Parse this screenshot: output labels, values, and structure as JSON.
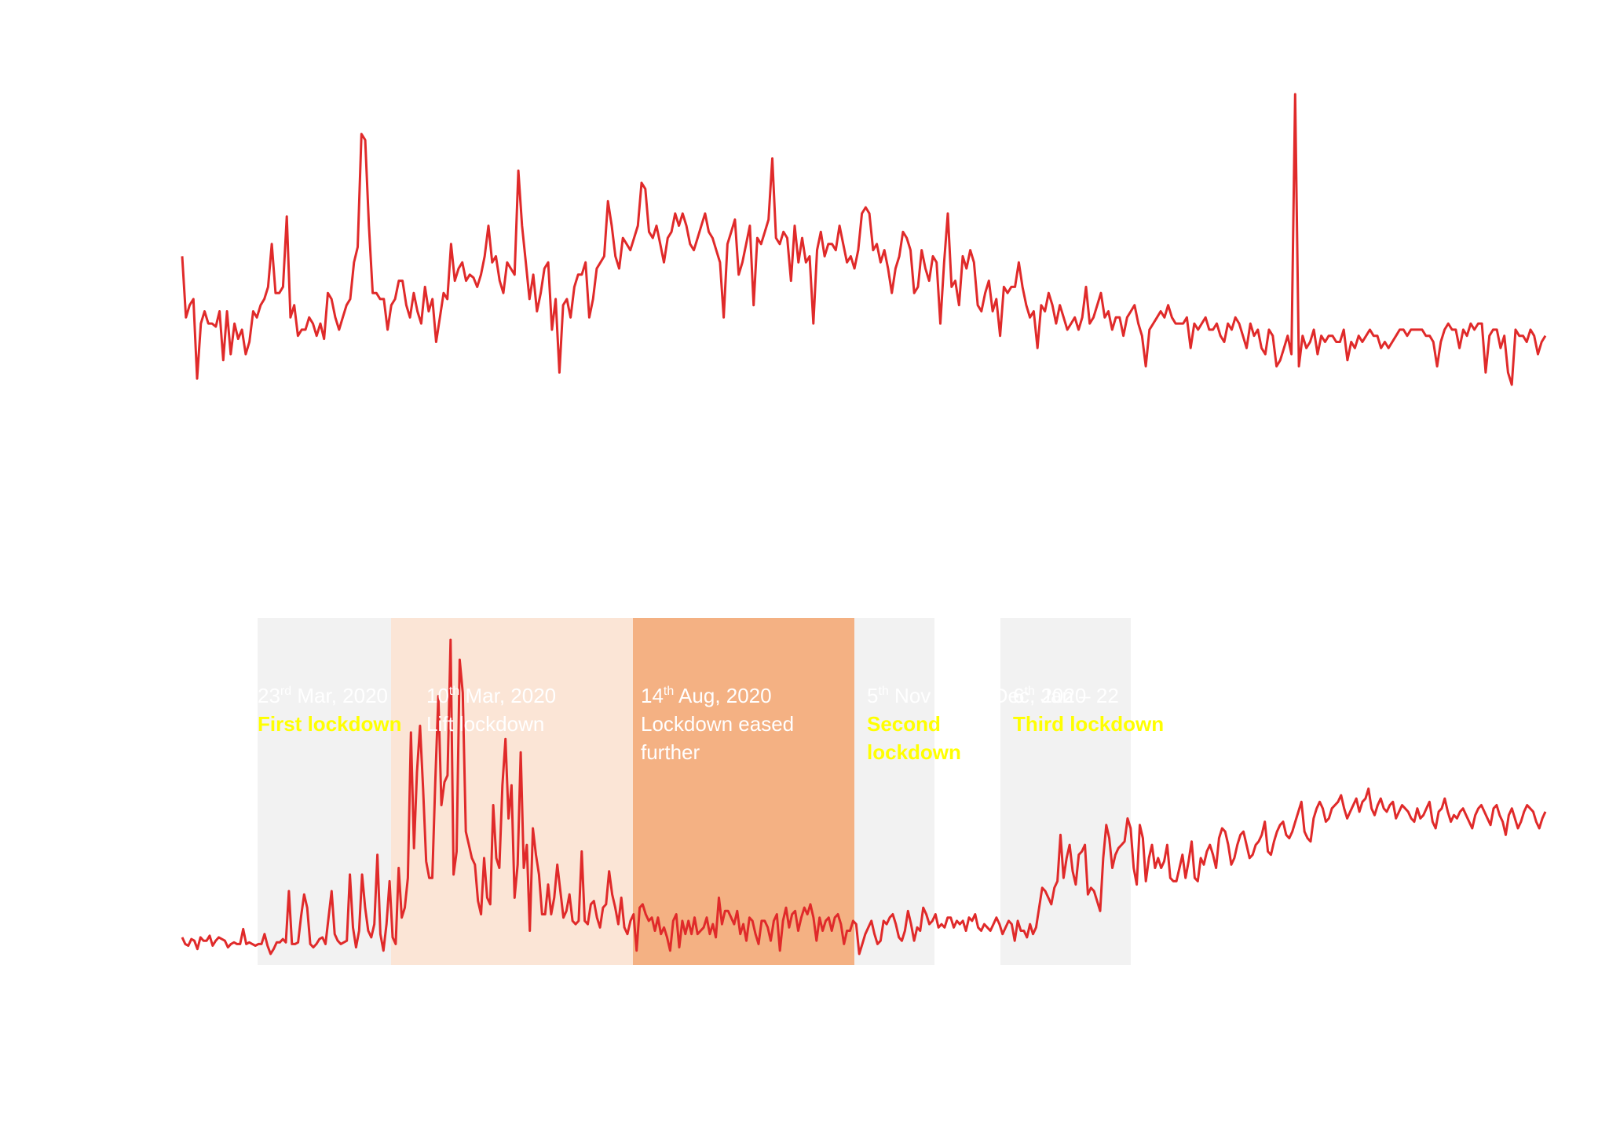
{
  "colors": {
    "line": "#e02a2a",
    "band_grey": "#f2f2f2",
    "band_light": "#fbe5d6",
    "band_orange": "#f4b183",
    "label_white": "#ffffff",
    "label_yellow": "#ffff00"
  },
  "chart_data": [
    {
      "type": "line",
      "title": "",
      "xlabel": "",
      "ylabel": "",
      "grid": false,
      "series": [
        {
          "values": [
            82,
            62,
            66,
            68,
            42,
            60,
            64,
            60,
            60,
            59,
            64,
            48,
            64,
            50,
            60,
            55,
            58,
            50,
            54,
            64,
            62,
            66,
            68,
            72,
            86,
            70,
            70,
            72,
            95,
            62,
            66,
            56,
            58,
            58,
            62,
            60,
            56,
            60,
            55,
            70,
            68,
            62,
            58,
            62,
            66,
            68,
            80,
            85,
            122,
            120,
            92,
            70,
            70,
            68,
            68,
            58,
            66,
            68,
            74,
            74,
            66,
            62,
            70,
            64,
            60,
            72,
            64,
            68,
            54,
            62,
            70,
            68,
            86,
            74,
            78,
            80,
            74,
            76,
            75,
            72,
            76,
            82,
            92,
            80,
            82,
            74,
            70,
            80,
            78,
            76,
            110,
            92,
            80,
            68,
            76,
            64,
            70,
            78,
            80,
            58,
            68,
            44,
            66,
            68,
            62,
            72,
            76,
            76,
            80,
            62,
            68,
            78,
            80,
            82,
            100,
            92,
            82,
            78,
            88,
            86,
            84,
            88,
            92,
            106,
            104,
            90,
            88,
            92,
            86,
            80,
            88,
            90,
            96,
            92,
            96,
            92,
            86,
            84,
            88,
            92,
            96,
            90,
            88,
            84,
            80,
            62,
            86,
            90,
            94,
            76,
            80,
            86,
            92,
            66,
            88,
            86,
            90,
            94,
            114,
            88,
            86,
            90,
            88,
            74,
            92,
            80,
            88,
            80,
            82,
            60,
            84,
            90,
            82,
            86,
            86,
            84,
            92,
            86,
            80,
            82,
            78,
            84,
            96,
            98,
            96,
            84,
            86,
            80,
            84,
            78,
            70,
            78,
            82,
            90,
            88,
            84,
            70,
            72,
            84,
            78,
            74,
            82,
            80,
            60,
            80,
            96,
            72,
            74,
            66,
            82,
            78,
            84,
            80,
            66,
            64,
            70,
            74,
            64,
            68,
            56,
            72,
            70,
            72,
            72,
            80,
            72,
            66,
            62,
            64,
            52,
            66,
            64,
            70,
            66,
            60,
            66,
            62,
            58,
            60,
            62,
            58,
            62,
            72,
            60,
            62,
            66,
            70,
            62,
            64,
            58,
            62,
            62,
            56,
            62,
            64,
            66,
            60,
            56,
            46,
            58,
            60,
            62,
            64,
            62,
            66,
            62,
            60,
            60,
            60,
            62,
            52,
            60,
            58,
            60,
            62,
            58,
            58,
            60,
            56,
            54,
            60,
            58,
            62,
            60,
            56,
            52,
            60,
            56,
            58,
            52,
            50,
            58,
            56,
            46,
            48,
            52,
            56,
            50,
            135,
            46,
            56,
            52,
            54,
            58,
            50,
            56,
            54,
            56,
            56,
            54,
            54,
            58,
            48,
            54,
            52,
            56,
            54,
            56,
            58,
            56,
            56,
            52,
            54,
            52,
            54,
            56,
            58,
            58,
            56,
            58,
            58,
            58,
            58,
            56,
            56,
            54,
            46,
            54,
            58,
            60,
            58,
            58,
            52,
            58,
            56,
            60,
            58,
            60,
            60,
            44,
            56,
            58,
            58,
            52,
            56,
            44,
            40,
            58,
            56,
            56,
            54,
            58,
            56,
            50,
            54,
            56
          ]
        }
      ]
    },
    {
      "type": "line",
      "title": "",
      "xlabel": "",
      "ylabel": "",
      "grid": false,
      "series": [
        {
          "values": [
            48,
            44,
            43,
            47,
            46,
            41,
            48,
            46,
            46,
            49,
            43,
            46,
            48,
            47,
            46,
            42,
            44,
            45,
            44,
            44,
            53,
            44,
            45,
            44,
            43,
            44,
            44,
            50,
            43,
            38,
            41,
            45,
            45,
            47,
            45,
            76,
            44,
            44,
            45,
            61,
            74,
            66,
            44,
            42,
            44,
            47,
            48,
            44,
            60,
            76,
            50,
            46,
            44,
            45,
            46,
            86,
            54,
            42,
            52,
            86,
            66,
            52,
            48,
            56,
            98,
            50,
            40,
            56,
            82,
            48,
            44,
            90,
            60,
            66,
            84,
            172,
            102,
            148,
            176,
            138,
            94,
            84,
            84,
            142,
            194,
            128,
            142,
            146,
            228,
            86,
            100,
            216,
            196,
            112,
            104,
            96,
            92,
            70,
            62,
            96,
            72,
            68,
            128,
            96,
            90,
            140,
            168,
            120,
            140,
            72,
            92,
            160,
            90,
            104,
            52,
            114,
            98,
            86,
            62,
            62,
            80,
            62,
            72,
            92,
            76,
            60,
            64,
            74,
            58,
            56,
            58,
            100,
            58,
            56,
            68,
            70,
            60,
            54,
            66,
            68,
            88,
            74,
            66,
            56,
            72,
            54,
            50,
            58,
            62,
            40,
            66,
            68,
            62,
            58,
            60,
            52,
            60,
            50,
            54,
            48,
            40,
            58,
            62,
            42,
            58,
            50,
            58,
            50,
            60,
            50,
            52,
            54,
            60,
            50,
            56,
            48,
            72,
            56,
            64,
            64,
            60,
            56,
            64,
            50,
            56,
            46,
            60,
            58,
            50,
            44,
            58,
            58,
            54,
            46,
            58,
            62,
            40,
            58,
            66,
            54,
            62,
            64,
            52,
            60,
            66,
            62,
            68,
            60,
            46,
            60,
            52,
            58,
            60,
            52,
            60,
            62,
            56,
            44,
            52,
            52,
            58,
            56,
            38,
            44,
            50,
            54,
            58,
            50,
            44,
            46,
            58,
            56,
            60,
            62,
            56,
            48,
            46,
            52,
            64,
            56,
            46,
            54,
            52,
            66,
            62,
            56,
            58,
            62,
            54,
            56,
            54,
            60,
            60,
            54,
            58,
            56,
            58,
            52,
            60,
            58,
            62,
            54,
            52,
            56,
            54,
            52,
            56,
            60,
            56,
            50,
            54,
            58,
            56,
            46,
            58,
            52,
            52,
            48,
            56,
            50,
            54,
            66,
            78,
            76,
            72,
            68,
            78,
            82,
            110,
            84,
            96,
            104,
            88,
            80,
            98,
            100,
            104,
            74,
            78,
            76,
            70,
            64,
            96,
            116,
            108,
            90,
            98,
            102,
            104,
            106,
            120,
            114,
            90,
            80,
            116,
            108,
            82,
            96,
            104,
            90,
            96,
            90,
            94,
            104,
            84,
            82,
            82,
            90,
            98,
            84,
            94,
            106,
            84,
            82,
            96,
            92,
            100,
            104,
            98,
            90,
            108,
            114,
            112,
            104,
            92,
            96,
            104,
            110,
            112,
            104,
            96,
            98,
            104,
            106,
            110,
            118,
            100,
            98,
            106,
            112,
            116,
            118,
            110,
            108,
            112,
            118,
            124,
            130,
            112,
            108,
            106,
            120,
            126,
            130,
            126,
            118,
            120,
            126,
            128,
            130,
            134,
            126,
            120,
            124,
            128,
            132,
            124,
            130,
            132,
            138,
            126,
            122,
            128,
            132,
            126,
            124,
            128,
            130,
            120,
            124,
            128,
            126,
            124,
            120,
            118,
            126,
            120,
            122,
            126,
            130,
            118,
            114,
            124,
            126,
            132,
            124,
            118,
            122,
            120,
            124,
            126,
            122,
            118,
            114,
            122,
            126,
            128,
            124,
            120,
            116,
            126,
            128,
            122,
            118,
            110,
            122,
            126,
            120,
            114,
            118,
            124,
            128,
            126,
            124,
            118,
            114,
            120,
            124
          ]
        }
      ],
      "periods": [
        {
          "date_main": "23",
          "date_sup": "rd",
          "date_rest": "  Mar, 2020",
          "label": "First lockdown",
          "style": "grey",
          "label_color": "yellow",
          "label_bold": true
        },
        {
          "date_main": "10",
          "date_sup": "th",
          "date_rest": "  Mar, 2020",
          "label": "Lift lockdown",
          "style": "light",
          "label_color": "white",
          "label_bold": false
        },
        {
          "date_main": "14",
          "date_sup": "th",
          "date_rest": "  Aug, 2020",
          "label": "Lockdown eased further",
          "style": "orange",
          "label_color": "white",
          "label_bold": false
        },
        {
          "date_main": "5",
          "date_sup": "th",
          "date_rest": "  Nov – 2nd Dec, 2020",
          "label": "Second lockdown",
          "style": "grey",
          "label_color": "yellow",
          "label_bold": true
        },
        {
          "date_main": "6",
          "date_sup": "th",
          "date_rest": "  Jan – 22",
          "label": "Third lockdown",
          "style": "grey",
          "label_color": "yellow",
          "label_bold": true
        }
      ]
    }
  ]
}
